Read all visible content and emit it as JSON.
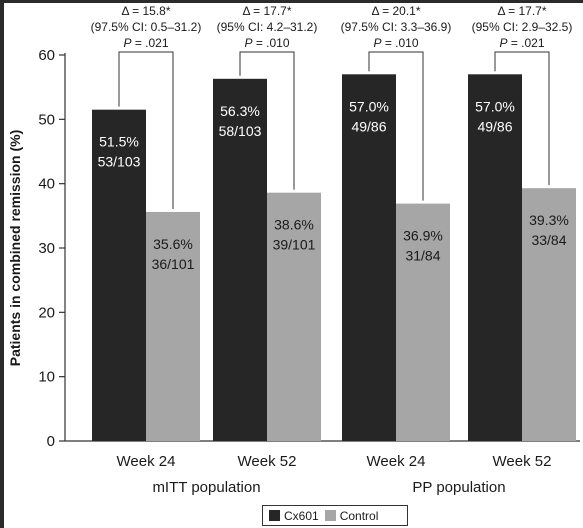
{
  "chart_data": {
    "type": "bar",
    "ylabel": "Patients in combined remission (%)",
    "ylim": [
      0,
      60
    ],
    "yticks": [
      0,
      10,
      20,
      30,
      40,
      50,
      60
    ],
    "groups": [
      "mITT population",
      "PP population"
    ],
    "categories": [
      "Week 24",
      "Week 52",
      "Week 24",
      "Week 52"
    ],
    "category_group": [
      0,
      0,
      1,
      1
    ],
    "series": [
      {
        "name": "Cx601",
        "color": "#262626",
        "values": [
          51.5,
          56.3,
          57.0,
          57.0
        ],
        "labels": [
          [
            "51.5%",
            "53/103"
          ],
          [
            "56.3%",
            "58/103"
          ],
          [
            "57.0%",
            "49/86"
          ],
          [
            "57.0%",
            "49/86"
          ]
        ]
      },
      {
        "name": "Control",
        "color": "#a6a6a6",
        "values": [
          35.6,
          38.6,
          36.9,
          39.3
        ],
        "labels": [
          [
            "35.6%",
            "36/101"
          ],
          [
            "38.6%",
            "39/101"
          ],
          [
            "36.9%",
            "31/84"
          ],
          [
            "39.3%",
            "33/84"
          ]
        ]
      }
    ],
    "annotations": [
      [
        "Δ = 15.8*",
        "(97.5% CI: 0.5–31.2)",
        "P = .021"
      ],
      [
        "Δ = 17.7*",
        "(95% CI: 4.2–31.2)",
        "P = .010"
      ],
      [
        "Δ = 20.1*",
        "(97.5% CI: 3.3–36.9)",
        "P = .010"
      ],
      [
        "Δ = 17.7*",
        "(95% CI: 2.9–32.5)",
        "P = .021"
      ]
    ],
    "legend": {
      "position": "bottom"
    }
  }
}
